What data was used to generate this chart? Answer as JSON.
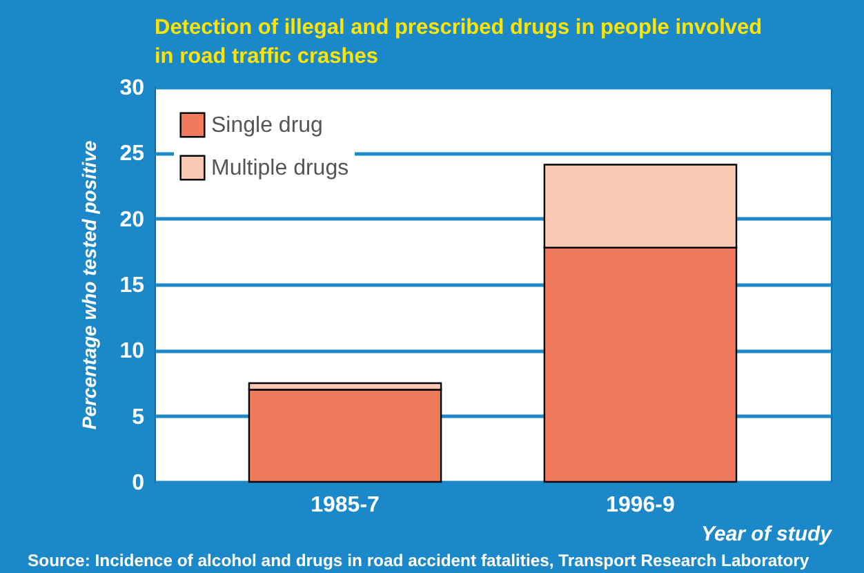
{
  "chart_data": {
    "type": "bar",
    "title": "Detection of illegal and prescribed drugs in people involved in road traffic crashes",
    "xlabel": "Year of study",
    "ylabel": "Percentage who tested positive",
    "categories": [
      "1985-7",
      "1996-9"
    ],
    "series": [
      {
        "name": "Single drug",
        "color": "#f07a5c",
        "values": [
          7.0,
          17.8
        ]
      },
      {
        "name": "Multiple drugs",
        "color": "#fbc8b3",
        "values": [
          0.5,
          6.3
        ]
      }
    ],
    "stacked": true,
    "ylim": [
      0,
      30
    ],
    "yticks": [
      0,
      5,
      10,
      15,
      20,
      25,
      30
    ],
    "grid": "y",
    "legend": "top left",
    "annotations": [
      "Source: Incidence of alcohol and drugs in road accident fatalities, Transport Research Laboratory"
    ]
  }
}
